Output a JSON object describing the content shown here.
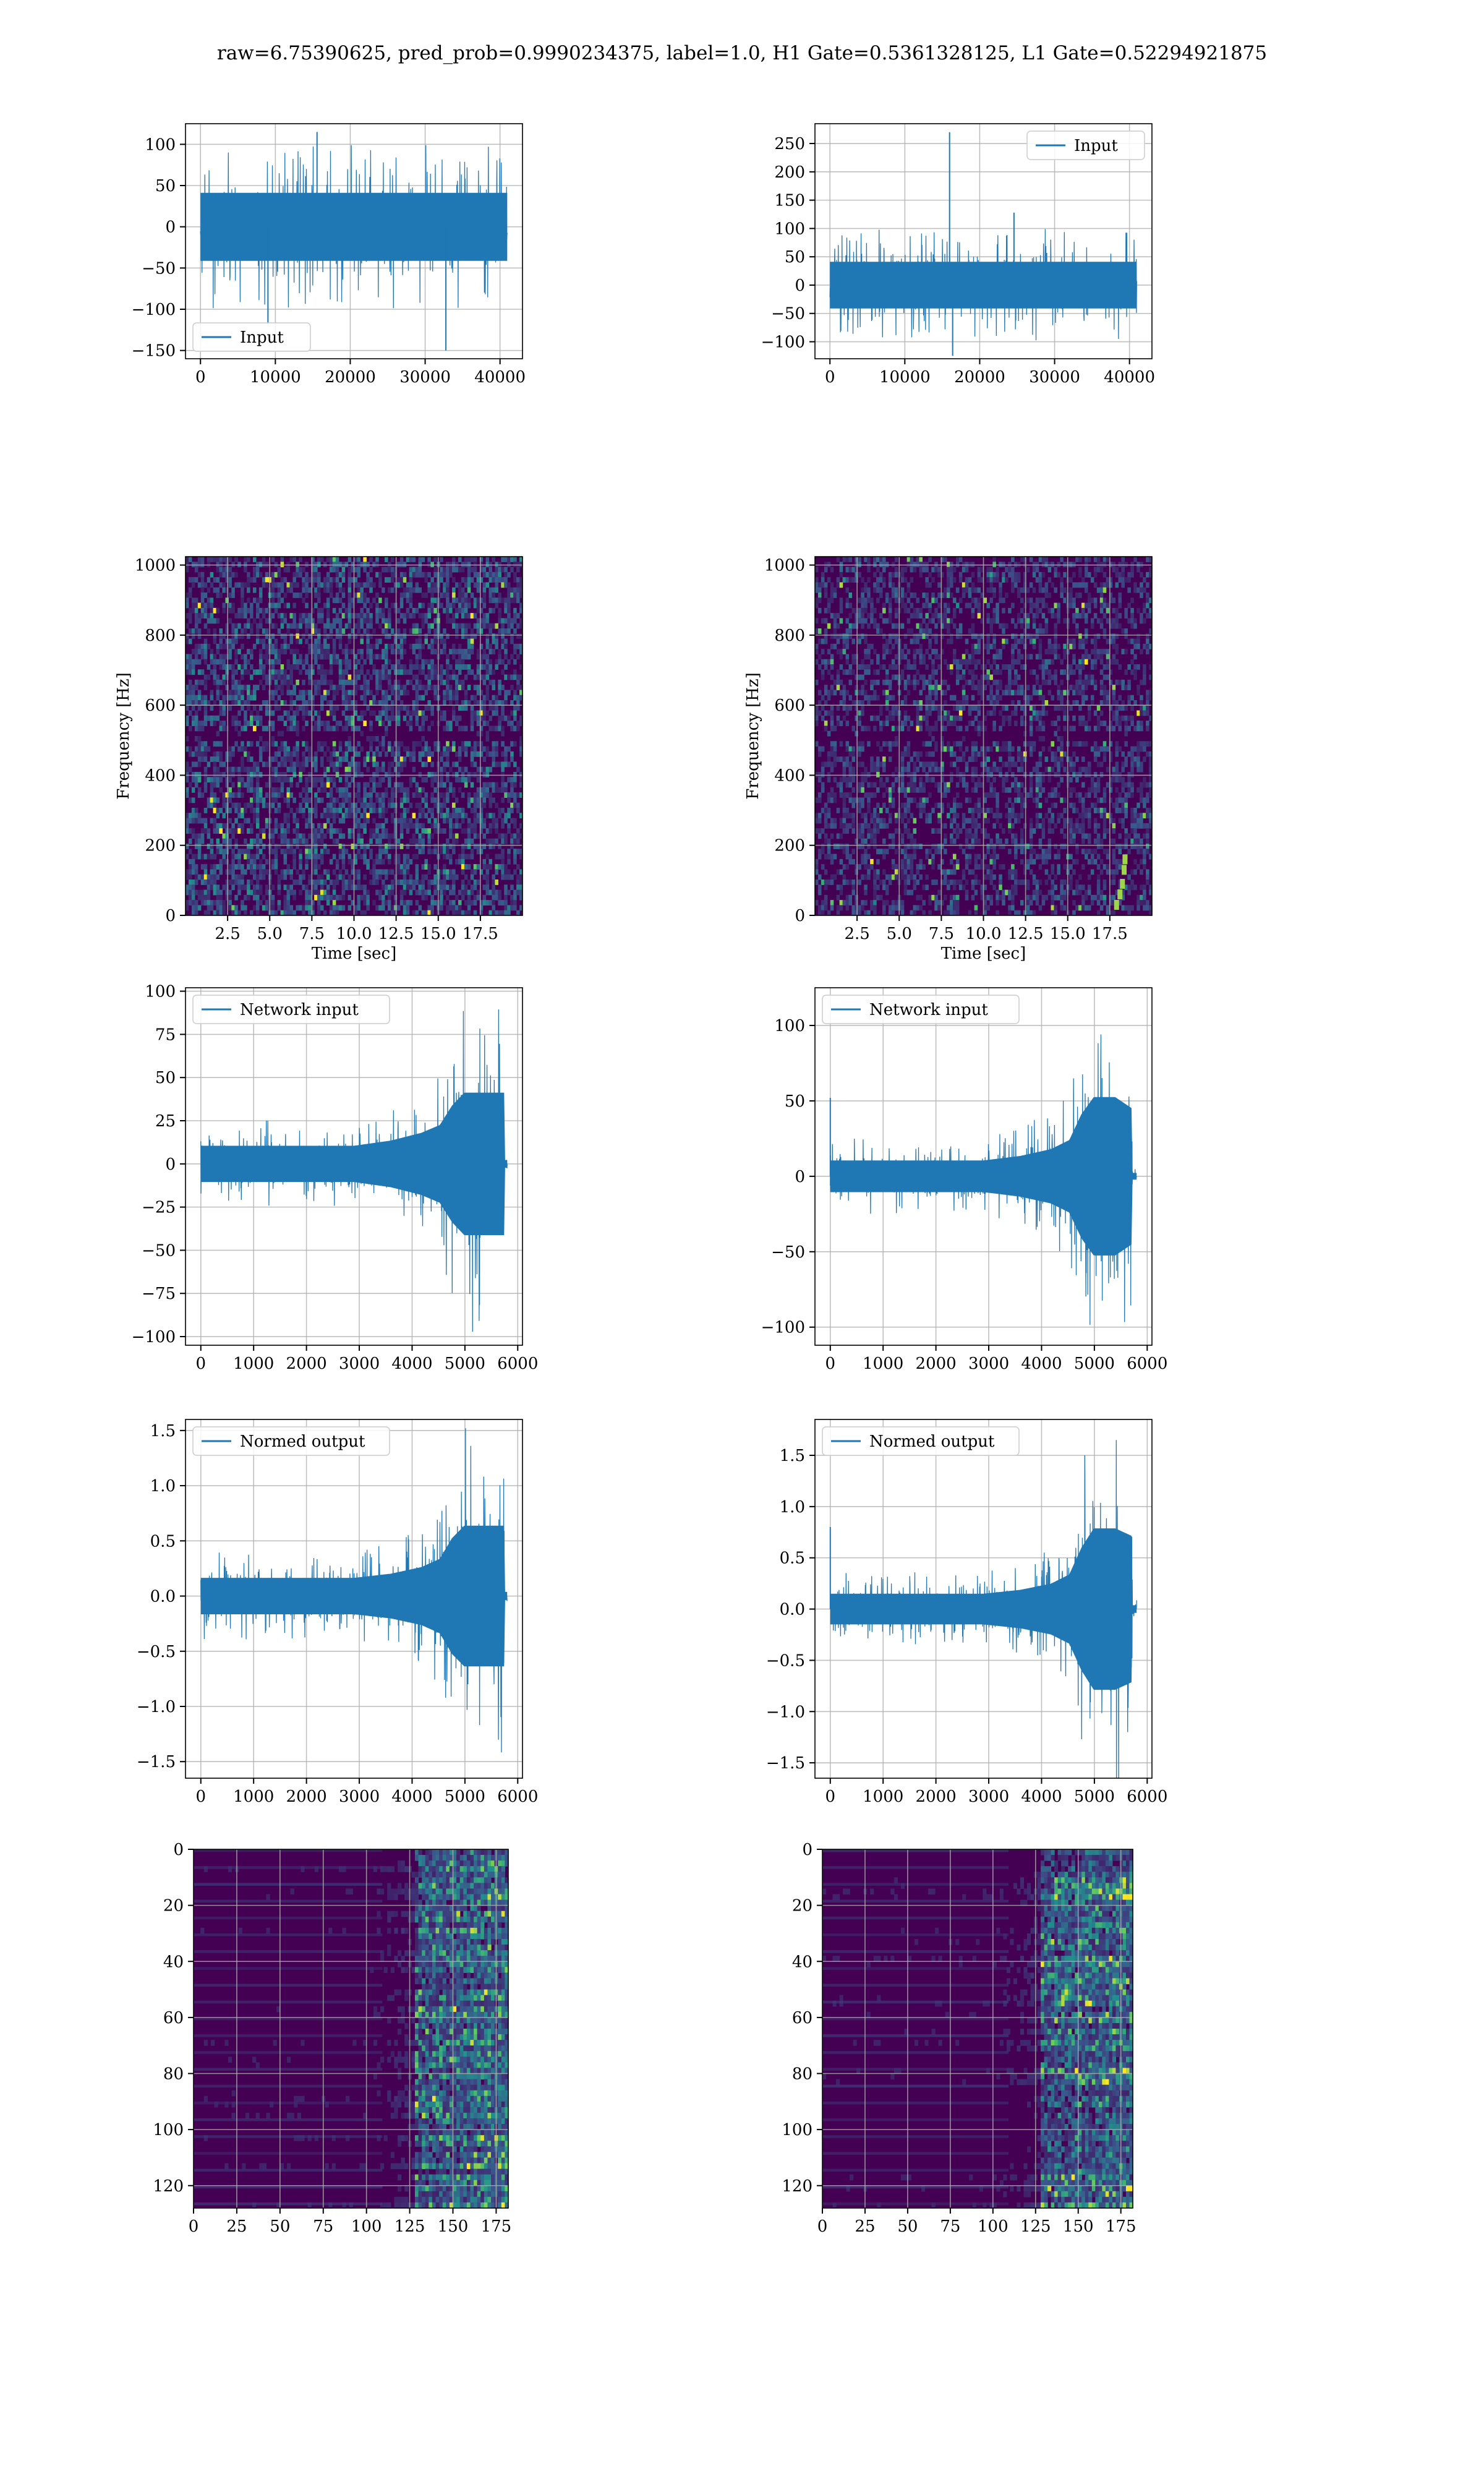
{
  "suptitle": "raw=6.75390625, pred_prob=0.9990234375, label=1.0, H1 Gate=0.5361328125, L1 Gate=0.52294921875",
  "colors": {
    "line": "#1f77b4",
    "grid": "#b0b0b0",
    "viridis_dark": "#440154",
    "viridis_mid": "#21918c",
    "viridis_bright": "#fde725"
  },
  "chart_data": [
    {
      "id": "h1_input",
      "type": "line",
      "legend": "Input",
      "legend_loc": "lower left",
      "xlim": [
        -2000,
        43000
      ],
      "ylim": [
        -160,
        125
      ],
      "xticks": [
        0,
        10000,
        20000,
        30000,
        40000
      ],
      "yticks": [
        -150,
        -100,
        -50,
        0,
        50,
        100
      ],
      "x_range": [
        0,
        40960
      ],
      "envelope": [
        [
          0,
          55
        ],
        [
          1,
          55
        ]
      ],
      "noise": 0.35,
      "spikes": [
        [
          0.8,
          -150
        ],
        [
          0.38,
          115
        ],
        [
          0.22,
          -118
        ]
      ],
      "seed": 11
    },
    {
      "id": "l1_input",
      "type": "line",
      "legend": "Input",
      "legend_loc": "upper right",
      "xlim": [
        -2000,
        43000
      ],
      "ylim": [
        -130,
        285
      ],
      "xticks": [
        0,
        10000,
        20000,
        30000,
        40000
      ],
      "yticks": [
        -100,
        -50,
        0,
        50,
        100,
        150,
        200,
        250
      ],
      "x_range": [
        0,
        40960
      ],
      "envelope": [
        [
          0,
          55
        ],
        [
          1,
          55
        ]
      ],
      "noise": 0.35,
      "spikes": [
        [
          0.39,
          270
        ],
        [
          0.6,
          128
        ],
        [
          0.4,
          -125
        ]
      ],
      "seed": 23
    },
    {
      "id": "h1_spec",
      "type": "heatmap",
      "xlabel": "Time [sec]",
      "ylabel": "Frequency [Hz]",
      "xlim": [
        0,
        20
      ],
      "ylim": [
        0,
        1024
      ],
      "xticks": [
        2.5,
        5.0,
        7.5,
        10.0,
        12.5,
        15.0,
        17.5
      ],
      "yticks": [
        0,
        200,
        400,
        600,
        800,
        1000
      ],
      "cols": 110,
      "rows": 70,
      "band_hz": 512,
      "seed": 5,
      "brightness": 0.55,
      "chirp": false
    },
    {
      "id": "l1_spec",
      "type": "heatmap",
      "xlabel": "Time [sec]",
      "ylabel": "Frequency [Hz]",
      "xlim": [
        0,
        20
      ],
      "ylim": [
        0,
        1024
      ],
      "xticks": [
        2.5,
        5.0,
        7.5,
        10.0,
        12.5,
        15.0,
        17.5
      ],
      "yticks": [
        0,
        200,
        400,
        600,
        800,
        1000
      ],
      "cols": 110,
      "rows": 70,
      "band_hz": 512,
      "seed": 9,
      "brightness": 0.4,
      "chirp": true
    },
    {
      "id": "h1_net",
      "type": "line",
      "legend": "Network input",
      "legend_loc": "upper left",
      "xlim": [
        -290,
        6090
      ],
      "ylim": [
        -105,
        102
      ],
      "xticks": [
        0,
        1000,
        2000,
        3000,
        4000,
        5000,
        6000
      ],
      "yticks": [
        -100,
        -75,
        -50,
        -25,
        0,
        25,
        50,
        75,
        100
      ],
      "x_range": [
        0,
        5800
      ],
      "envelope": [
        [
          0,
          14
        ],
        [
          0.5,
          14
        ],
        [
          0.62,
          18
        ],
        [
          0.72,
          24
        ],
        [
          0.78,
          30
        ],
        [
          0.82,
          45
        ],
        [
          0.86,
          55
        ],
        [
          0.93,
          55
        ],
        [
          0.99,
          55
        ],
        [
          0.991,
          3
        ],
        [
          1,
          3
        ]
      ],
      "noise": 0.4,
      "spikes": [],
      "seed": 31
    },
    {
      "id": "l1_net",
      "type": "line",
      "legend": "Network input",
      "legend_loc": "upper left",
      "xlim": [
        -290,
        6090
      ],
      "ylim": [
        -112,
        125
      ],
      "xticks": [
        0,
        1000,
        2000,
        3000,
        4000,
        5000,
        6000
      ],
      "yticks": [
        -100,
        -50,
        0,
        50,
        100
      ],
      "x_range": [
        0,
        5800
      ],
      "envelope": [
        [
          0,
          14
        ],
        [
          0.5,
          14
        ],
        [
          0.62,
          18
        ],
        [
          0.72,
          24
        ],
        [
          0.78,
          32
        ],
        [
          0.82,
          55
        ],
        [
          0.86,
          70
        ],
        [
          0.93,
          70
        ],
        [
          0.985,
          60
        ],
        [
          0.986,
          3
        ],
        [
          1,
          3
        ]
      ],
      "noise": 0.4,
      "spikes": [
        [
          0.0,
          52
        ]
      ],
      "seed": 37
    },
    {
      "id": "h1_norm",
      "type": "line",
      "legend": "Normed output",
      "legend_loc": "upper left",
      "xlim": [
        -290,
        6090
      ],
      "ylim": [
        -1.65,
        1.6
      ],
      "xticks": [
        0,
        1000,
        2000,
        3000,
        4000,
        5000,
        6000
      ],
      "yticks": [
        -1.5,
        -1.0,
        -0.5,
        0.0,
        0.5,
        1.0,
        1.5
      ],
      "x_range": [
        0,
        5800
      ],
      "envelope": [
        [
          0,
          0.22
        ],
        [
          0.5,
          0.22
        ],
        [
          0.62,
          0.27
        ],
        [
          0.72,
          0.35
        ],
        [
          0.78,
          0.45
        ],
        [
          0.82,
          0.7
        ],
        [
          0.86,
          0.85
        ],
        [
          0.93,
          0.85
        ],
        [
          0.99,
          0.85
        ],
        [
          0.991,
          0.05
        ],
        [
          1,
          0.05
        ]
      ],
      "noise": 0.4,
      "spikes": [],
      "seed": 41
    },
    {
      "id": "l1_norm",
      "type": "line",
      "legend": "Normed output",
      "legend_loc": "upper left",
      "xlim": [
        -290,
        6090
      ],
      "ylim": [
        -1.65,
        1.85
      ],
      "xticks": [
        0,
        1000,
        2000,
        3000,
        4000,
        5000,
        6000
      ],
      "yticks": [
        -1.5,
        -1.0,
        -0.5,
        0.0,
        0.5,
        1.0,
        1.5
      ],
      "x_range": [
        0,
        5800
      ],
      "envelope": [
        [
          0,
          0.2
        ],
        [
          0.5,
          0.2
        ],
        [
          0.62,
          0.25
        ],
        [
          0.72,
          0.33
        ],
        [
          0.78,
          0.45
        ],
        [
          0.82,
          0.8
        ],
        [
          0.86,
          1.05
        ],
        [
          0.93,
          1.05
        ],
        [
          0.985,
          0.95
        ],
        [
          0.986,
          0.05
        ],
        [
          1,
          0.05
        ]
      ],
      "noise": 0.4,
      "spikes": [
        [
          0.0,
          0.8
        ]
      ],
      "seed": 43
    },
    {
      "id": "h1_feat",
      "type": "heatmap",
      "invert_y": true,
      "xlim": [
        0,
        182
      ],
      "ylim": [
        0,
        128
      ],
      "xticks": [
        0,
        25,
        50,
        75,
        100,
        125,
        150,
        175
      ],
      "yticks": [
        0,
        20,
        40,
        60,
        80,
        100,
        120
      ],
      "cols": 91,
      "rows": 64,
      "seed": 17,
      "feature": true
    },
    {
      "id": "l1_feat",
      "type": "heatmap",
      "invert_y": true,
      "xlim": [
        0,
        182
      ],
      "ylim": [
        0,
        128
      ],
      "xticks": [
        0,
        25,
        50,
        75,
        100,
        125,
        150,
        175
      ],
      "yticks": [
        0,
        20,
        40,
        60,
        80,
        100,
        120
      ],
      "cols": 91,
      "rows": 64,
      "seed": 29,
      "feature": true
    }
  ]
}
